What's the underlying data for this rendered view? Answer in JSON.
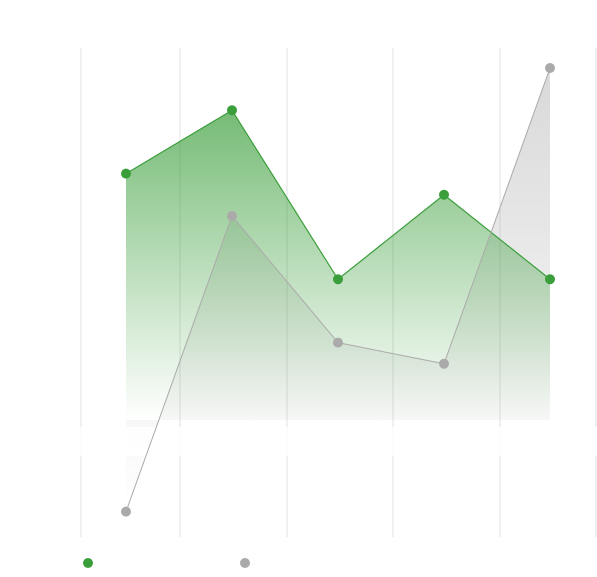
{
  "chart_data": {
    "type": "area",
    "x": [
      1,
      2,
      3,
      4,
      5
    ],
    "series": [
      {
        "values": [
          5.8,
          7.3,
          3.3,
          5.3,
          3.3
        ],
        "color": "#3a9e3a"
      },
      {
        "values": [
          -2.2,
          4.8,
          1.8,
          1.3,
          8.3
        ],
        "color": "#aaaaaa"
      }
    ],
    "ylim": [
      -2.8,
      9.2
    ],
    "grid": "vertical",
    "legend": "bottom-left"
  }
}
